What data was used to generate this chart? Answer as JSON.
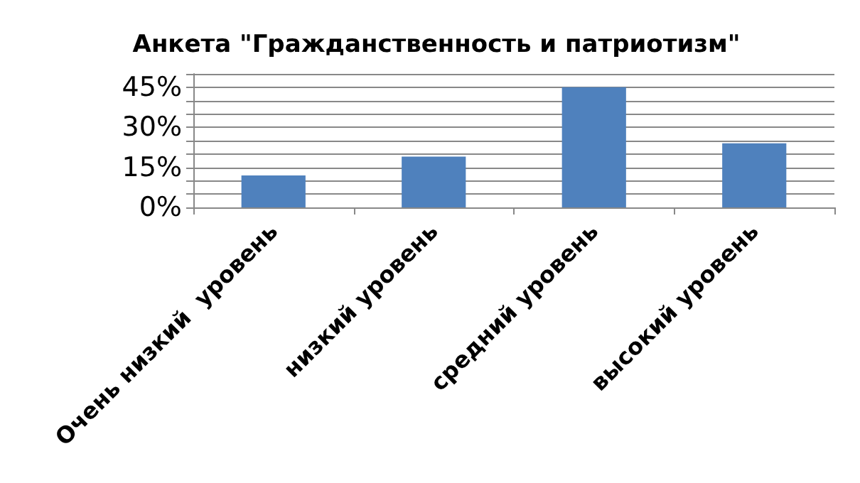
{
  "chart_data": {
    "type": "bar",
    "title": "Анкета \"Гражданственность и патриотизм\"",
    "categories": [
      "Очень низкий  уровень",
      "низкий уровень",
      "средний уровень",
      "высокий уровень"
    ],
    "values": [
      12,
      19,
      45,
      24
    ],
    "color": "#4f81bd",
    "ylim": [
      0,
      50
    ],
    "yticks": [
      {
        "value": 0,
        "label": "0%"
      },
      {
        "value": 5,
        "label": null
      },
      {
        "value": 10,
        "label": null
      },
      {
        "value": 15,
        "label": "15%"
      },
      {
        "value": 20,
        "label": null
      },
      {
        "value": 25,
        "label": null
      },
      {
        "value": 30,
        "label": "30%"
      },
      {
        "value": 35,
        "label": null
      },
      {
        "value": 40,
        "label": null
      },
      {
        "value": 45,
        "label": "45%"
      },
      {
        "value": 50,
        "label": null
      }
    ],
    "grid": true
  }
}
